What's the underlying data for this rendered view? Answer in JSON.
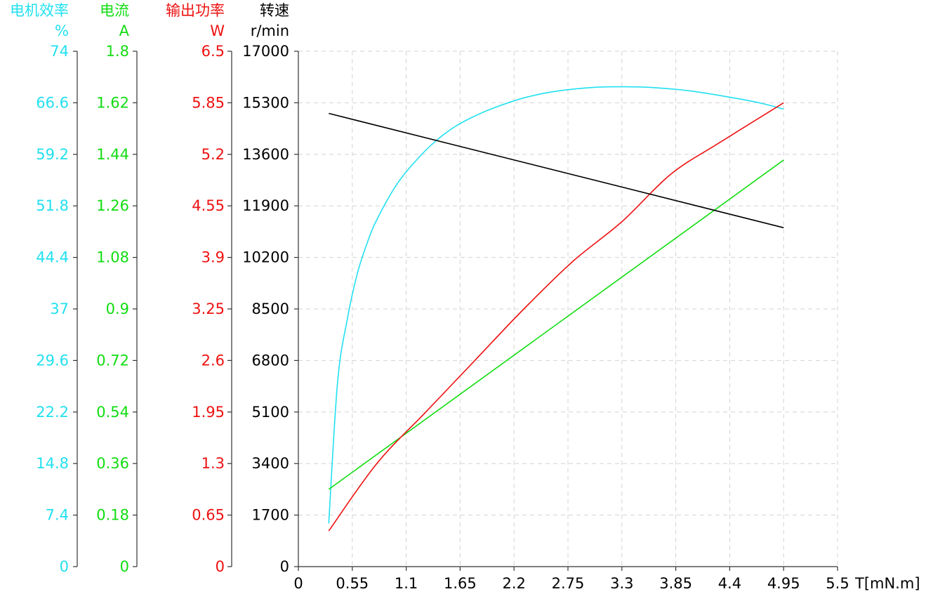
{
  "chart_data": {
    "type": "line",
    "xlabel": "T[mN.m]",
    "x_ticks": [
      "0",
      "0.55",
      "1.1",
      "1.65",
      "2.2",
      "2.75",
      "3.3",
      "3.85",
      "4.4",
      "4.95",
      "5.5"
    ],
    "xlim": [
      0,
      5.5
    ],
    "grid": true,
    "axes": [
      {
        "id": "efficiency",
        "title": "电机效率",
        "unit": "%",
        "color": "#22e0f0",
        "ylim": [
          0,
          74
        ],
        "ticks": [
          "74",
          "66.6",
          "59.2",
          "51.8",
          "44.4",
          "37",
          "29.6",
          "22.2",
          "14.8",
          "7.4",
          "0"
        ]
      },
      {
        "id": "current",
        "title": "电流",
        "unit": "A",
        "color": "#11dd11",
        "ylim": [
          0,
          1.8
        ],
        "ticks": [
          "1.8",
          "1.62",
          "1.44",
          "1.26",
          "1.08",
          "0.9",
          "0.72",
          "0.54",
          "0.36",
          "0.18",
          "0"
        ]
      },
      {
        "id": "power",
        "title": "输出功率",
        "unit": "W",
        "color": "#ee1111",
        "ylim": [
          0,
          6.5
        ],
        "ticks": [
          "6.5",
          "5.85",
          "5.2",
          "4.55",
          "3.9",
          "3.25",
          "2.6",
          "1.95",
          "1.3",
          "0.65",
          "0"
        ]
      },
      {
        "id": "speed",
        "title": "转速",
        "unit": "r/min",
        "color": "#000000",
        "ylim": [
          0,
          17000
        ],
        "ticks": [
          "17000",
          "15300",
          "13600",
          "11900",
          "10200",
          "8500",
          "6800",
          "5100",
          "3400",
          "1700",
          "0"
        ]
      }
    ],
    "series": [
      {
        "axis": "efficiency",
        "color": "#22e0f0",
        "x": [
          0.31,
          0.4,
          0.5,
          0.6,
          0.7,
          0.8,
          1.0,
          1.2,
          1.4,
          1.6,
          1.8,
          2.0,
          2.3,
          2.6,
          3.0,
          3.3,
          3.6,
          4.0,
          4.4,
          4.7,
          4.95
        ],
        "y": [
          6.2,
          26.5,
          35.6,
          42.0,
          46.4,
          49.8,
          54.8,
          58.3,
          61.1,
          63.2,
          64.7,
          65.9,
          67.3,
          68.2,
          68.8,
          68.9,
          68.8,
          68.3,
          67.4,
          66.6,
          65.7
        ]
      },
      {
        "axis": "current",
        "color": "#11dd11",
        "x": [
          0.31,
          4.95
        ],
        "y": [
          0.27,
          1.42
        ]
      },
      {
        "axis": "power",
        "color": "#ee1111",
        "x": [
          0.31,
          0.8,
          1.3,
          1.8,
          2.3,
          2.8,
          3.3,
          3.8,
          4.3,
          4.95
        ],
        "y": [
          0.45,
          1.3,
          1.95,
          2.6,
          3.25,
          3.85,
          4.35,
          4.95,
          5.35,
          5.85
        ]
      },
      {
        "axis": "speed",
        "color": "#000000",
        "x": [
          0.31,
          4.95
        ],
        "y": [
          14950,
          11180
        ]
      }
    ]
  }
}
